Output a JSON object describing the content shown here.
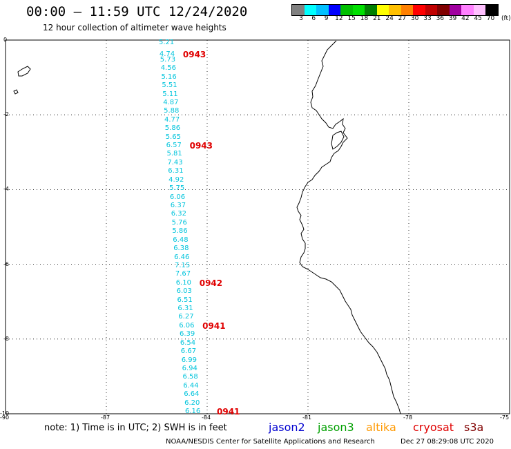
{
  "header": {
    "title": "00:00 – 11:59 UTC 12/24/2020",
    "subtitle": "12 hour collection of altimeter wave heights"
  },
  "colorbar": {
    "colors": [
      "#808080",
      "#00ffff",
      "#00c0ff",
      "#0000ff",
      "#00c000",
      "#00e000",
      "#008000",
      "#ffff00",
      "#ffc000",
      "#ff8000",
      "#ff0000",
      "#c00000",
      "#800000",
      "#a000a0",
      "#ff80ff",
      "#ffc0ff",
      "#000000"
    ],
    "labels": [
      "3",
      "6",
      "9",
      "12",
      "15",
      "18",
      "21",
      "24",
      "27",
      "30",
      "33",
      "36",
      "39",
      "42",
      "45",
      "70",
      "(ft)"
    ]
  },
  "map": {
    "lat_ticks": [
      "0",
      "-2",
      "-4",
      "-6",
      "-8",
      "-10"
    ],
    "lon_ticks": [
      "-90",
      "-87",
      "-84",
      "-81",
      "-78",
      "-75"
    ],
    "lat_range": [
      -10,
      0
    ],
    "lon_range": [
      -90,
      -75
    ],
    "grid": "dotted",
    "coastline_color": "#000000",
    "track_color": "#00c4dc",
    "time_label_color": "#e00000"
  },
  "swh_values": [
    "5.21",
    "4.74",
    "5.73",
    "4.56",
    "5.16",
    "5.51",
    "5.11",
    "4.87",
    "5.88",
    "4.77",
    "5.86",
    "5.65",
    "6.57",
    "5.81",
    "7.43",
    "6.31",
    "4.92",
    "5.75",
    "6.06",
    "6.37",
    "6.32",
    "5.76",
    "5.86",
    "6.48",
    "6.38",
    "6.46",
    "7.15",
    "7.67",
    "6.10",
    "6.03",
    "6.51",
    "6.31",
    "6.27",
    "6.06",
    "6.39",
    "6.54",
    "6.67",
    "6.99",
    "6.94",
    "6.58",
    "6.44",
    "6.64",
    "6.20",
    "6.16"
  ],
  "time_labels": [
    "0943",
    "0943",
    "0942",
    "0941",
    "0941"
  ],
  "footer": {
    "note": "note: 1) Time is in UTC; 2) SWH is in feet",
    "satellites": [
      {
        "name": "jason2",
        "color": "#0000d0"
      },
      {
        "name": "jason3",
        "color": "#00a000"
      },
      {
        "name": "altika",
        "color": "#ff9900"
      },
      {
        "name": "cryosat",
        "color": "#e00000"
      },
      {
        "name": "s3a",
        "color": "#800000"
      }
    ],
    "credit": "NOAA/NESDIS Center for Satellite Applications and Research",
    "timestamp": "Dec 27 08:29:08 UTC 2020"
  }
}
